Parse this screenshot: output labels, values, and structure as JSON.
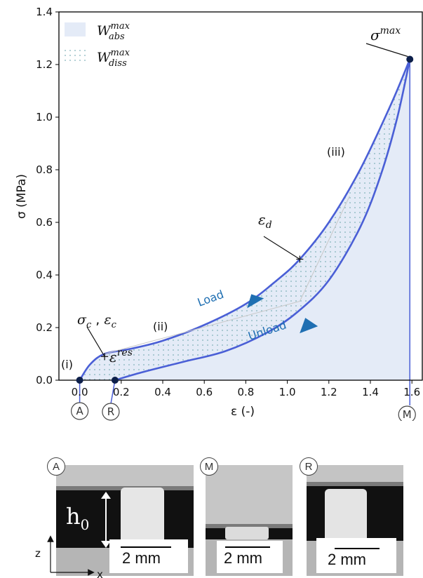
{
  "chart_data": {
    "type": "line",
    "xlabel": "ε (-)",
    "ylabel": "σ  (MPa)",
    "xlim": [
      -0.1,
      1.65
    ],
    "ylim": [
      0,
      1.4
    ],
    "xticks": [
      "0.0",
      "0.2",
      "0.4",
      "0.6",
      "0.8",
      "1.0",
      "1.2",
      "1.4",
      "1.6"
    ],
    "yticks": [
      "0.0",
      "0.2",
      "0.4",
      "0.6",
      "0.8",
      "1.0",
      "1.2",
      "1.4"
    ],
    "grid": false,
    "legend_position": "top-left",
    "legend": [
      {
        "symbol": "W",
        "sup": "max",
        "sub": "abs",
        "style": "filled"
      },
      {
        "symbol": "W",
        "sup": "max",
        "sub": "diss",
        "style": "dotted"
      }
    ],
    "series": [
      {
        "name": "Load",
        "x": [
          0.0,
          0.05,
          0.12,
          0.25,
          0.4,
          0.6,
          0.8,
          0.95,
          1.06,
          1.2,
          1.35,
          1.5,
          1.59
        ],
        "y": [
          0.0,
          0.06,
          0.1,
          0.12,
          0.15,
          0.21,
          0.29,
          0.38,
          0.46,
          0.6,
          0.8,
          1.05,
          1.22
        ]
      },
      {
        "name": "Unload",
        "x": [
          0.17,
          0.3,
          0.5,
          0.7,
          0.9,
          1.05,
          1.2,
          1.35,
          1.45,
          1.53,
          1.59
        ],
        "y": [
          0.0,
          0.03,
          0.07,
          0.11,
          0.18,
          0.26,
          0.38,
          0.58,
          0.78,
          1.0,
          1.22
        ]
      }
    ],
    "points": [
      {
        "x": 0.0,
        "y": 0.0,
        "letter": "A"
      },
      {
        "x": 0.17,
        "y": 0.0,
        "letter": "R"
      },
      {
        "x": 1.59,
        "y": 1.22,
        "letter": "M"
      }
    ],
    "annotations": {
      "sigma_max": {
        "base": "σ",
        "sup": "max"
      },
      "eps_d": {
        "base": "ε",
        "sub": "d"
      },
      "sigma_c_eps_c": {
        "base1": "σ",
        "sub1": "c",
        "sep": " , ",
        "base2": "ε",
        "sub2": "c"
      },
      "eps_res": {
        "base": "ε",
        "sup": "res"
      },
      "stage_i": "(i)",
      "stage_ii": "(ii)",
      "stage_iii": "(iii)",
      "load_label": "Load",
      "unload_label": "Unload"
    },
    "colors": {
      "curve": "#4a5fd6",
      "fill": "#e4ebf7",
      "dots": "#7fb0b8",
      "label": "#1f6fb2",
      "point": "#0d1f4a"
    }
  },
  "panels": {
    "axis_z": "z",
    "axis_x": "x",
    "h0": {
      "base": "h",
      "sub": "0"
    },
    "items": [
      {
        "letter": "A",
        "scale": "2 mm"
      },
      {
        "letter": "M",
        "scale": "2 mm"
      },
      {
        "letter": "R",
        "scale": "2 mm"
      }
    ]
  }
}
